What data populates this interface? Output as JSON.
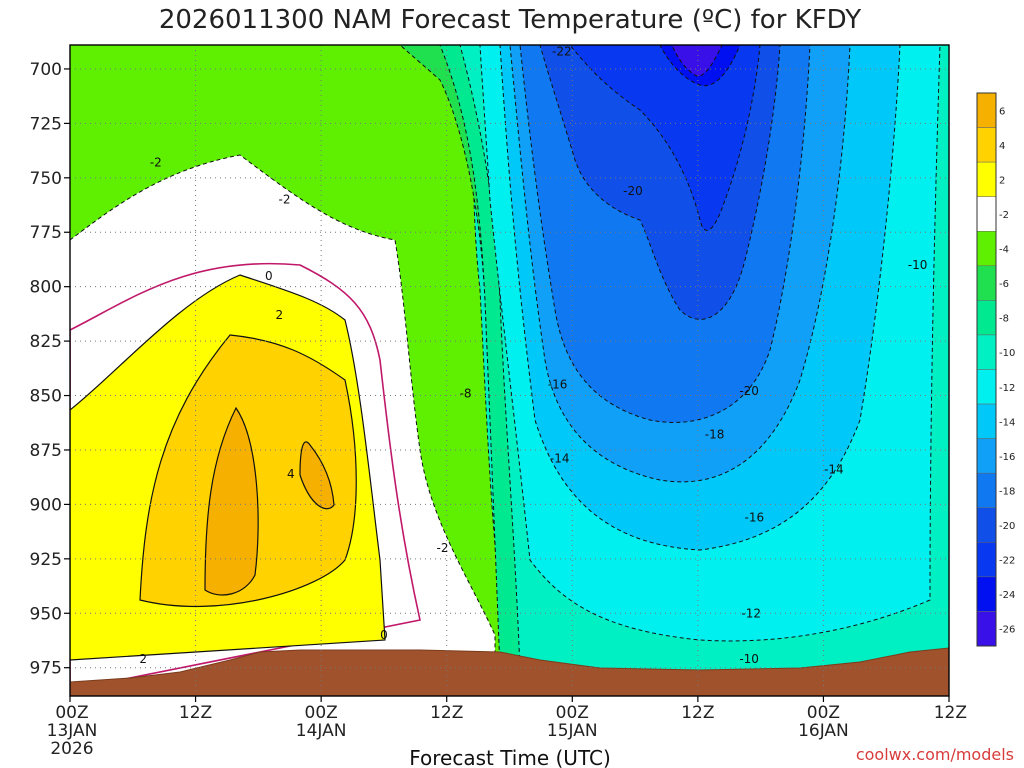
{
  "chart_data": {
    "type": "heatmap",
    "title": "2026011300 NAM Forecast Temperature (ºC) for KFDY",
    "xlabel": "Forecast Time (UTC)",
    "ylabel": "",
    "credit": "coolwx.com/models",
    "x_ticks": [
      {
        "hour": 0,
        "lines": [
          "00Z",
          "13JAN",
          "2026"
        ]
      },
      {
        "hour": 12,
        "lines": [
          "12Z"
        ]
      },
      {
        "hour": 24,
        "lines": [
          "00Z",
          "14JAN"
        ]
      },
      {
        "hour": 36,
        "lines": [
          "12Z"
        ]
      },
      {
        "hour": 48,
        "lines": [
          "00Z",
          "15JAN"
        ]
      },
      {
        "hour": 60,
        "lines": [
          "12Z"
        ]
      },
      {
        "hour": 72,
        "lines": [
          "00Z",
          "16JAN"
        ]
      },
      {
        "hour": 84,
        "lines": [
          "12Z"
        ]
      }
    ],
    "xlim": [
      0,
      84
    ],
    "y_ticks": [
      700,
      725,
      750,
      775,
      800,
      825,
      850,
      875,
      900,
      925,
      950,
      975
    ],
    "ylim": [
      988,
      689
    ],
    "colorbar": {
      "levels": [
        -26,
        -24,
        -22,
        -20,
        -18,
        -16,
        -14,
        -12,
        -10,
        -8,
        -6,
        -4,
        -2,
        2,
        4,
        6
      ],
      "labels": [
        "6",
        "4",
        "2",
        "-2",
        "-4",
        "-6",
        "-8",
        "-10",
        "-12",
        "-14",
        "-16",
        "-18",
        "-20",
        "-22",
        "-24",
        "-26"
      ],
      "colors": [
        "#f5b000",
        "#ffd200",
        "#ffff00",
        "#ffffff",
        "#5ef000",
        "#20e050",
        "#00e890",
        "#00f0c4",
        "#00f0f0",
        "#00c8f8",
        "#10a0f8",
        "#1078f0",
        "#1050e8",
        "#0838f0",
        "#0010f0",
        "#3a10e8"
      ]
    },
    "contour_labels": [
      {
        "text": "-22",
        "hour": 47.0,
        "p": 692
      },
      {
        "text": "-2",
        "hour": 8.2,
        "p": 743
      },
      {
        "text": "-2",
        "hour": 20.5,
        "p": 760
      },
      {
        "text": "-20",
        "hour": 53.8,
        "p": 756
      },
      {
        "text": "-10",
        "hour": 81.0,
        "p": 790
      },
      {
        "text": "0",
        "hour": 19.0,
        "p": 795
      },
      {
        "text": "2",
        "hour": 20.0,
        "p": 813
      },
      {
        "text": "-16",
        "hour": 46.6,
        "p": 845
      },
      {
        "text": "-20",
        "hour": 64.9,
        "p": 848
      },
      {
        "text": "-8",
        "hour": 37.8,
        "p": 849
      },
      {
        "text": "-18",
        "hour": 61.6,
        "p": 868
      },
      {
        "text": "-14",
        "hour": 46.8,
        "p": 879
      },
      {
        "text": "-14",
        "hour": 73.0,
        "p": 884
      },
      {
        "text": "4",
        "hour": 21.1,
        "p": 886
      },
      {
        "text": "-16",
        "hour": 65.4,
        "p": 906
      },
      {
        "text": "-2",
        "hour": 35.6,
        "p": 920
      },
      {
        "text": "-12",
        "hour": 65.1,
        "p": 950
      },
      {
        "text": "0",
        "hour": 30.0,
        "p": 960
      },
      {
        "text": "2",
        "hour": 7.0,
        "p": 971
      },
      {
        "text": "-10",
        "hour": 64.9,
        "p": 971
      }
    ]
  }
}
